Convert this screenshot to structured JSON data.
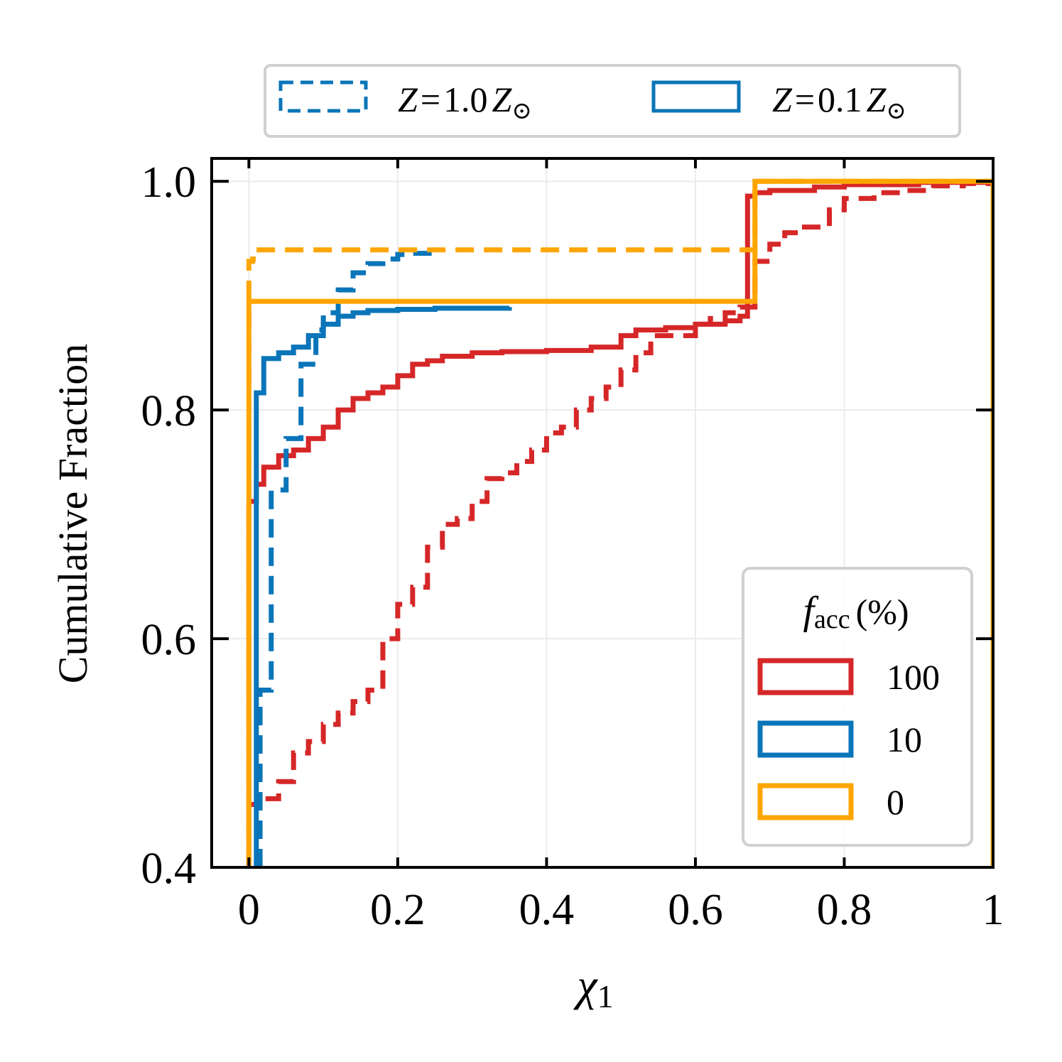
{
  "chart_data": {
    "type": "line",
    "subtype": "cumulative step histogram",
    "xlabel": "χ1",
    "xlabel_symbol": "χ",
    "xlabel_subscript": "1",
    "ylabel": "Cumulative Fraction",
    "xlim": [
      -0.05,
      1.0
    ],
    "ylim": [
      0.4,
      1.02
    ],
    "grid": true,
    "x_ticks": [
      0,
      0.2,
      0.4,
      0.6,
      0.8,
      1.0
    ],
    "x_tick_labels": [
      "0",
      "0.2",
      "0.4",
      "0.6",
      "0.8",
      "1"
    ],
    "y_ticks": [
      0.4,
      0.6,
      0.8,
      1.0
    ],
    "y_tick_labels": [
      "0.4",
      "0.6",
      "0.8",
      "1.0"
    ],
    "legend_metallicity": {
      "placement": "top, above axes",
      "entries": [
        {
          "style": "dashed",
          "label": "Z = 1.0 Z⊙",
          "var": "Z",
          "eq": "=",
          "val": "1.0",
          "unit": "Z",
          "unit_sub": "⊙"
        },
        {
          "style": "solid",
          "label": "Z = 0.1 Z⊙",
          "var": "Z",
          "eq": "=",
          "val": "0.1",
          "unit": "Z",
          "unit_sub": "⊙"
        }
      ]
    },
    "legend_facc": {
      "placement": "lower right",
      "title": "facc (%)",
      "title_var": "f",
      "title_sub": "acc",
      "title_unit": "(%)",
      "entries": [
        {
          "label": "100",
          "color": "#d62728"
        },
        {
          "label": "10",
          "color": "#0a75b9"
        },
        {
          "label": "0",
          "color": "#ffa500"
        }
      ]
    },
    "series": [
      {
        "name": "facc 100%, Z = 1.0 Z⊙",
        "color": "#d62728",
        "style": "dashed",
        "x": [
          0.0,
          0.02,
          0.04,
          0.06,
          0.08,
          0.1,
          0.12,
          0.14,
          0.16,
          0.18,
          0.2,
          0.22,
          0.24,
          0.26,
          0.28,
          0.3,
          0.32,
          0.34,
          0.36,
          0.38,
          0.4,
          0.42,
          0.44,
          0.46,
          0.48,
          0.5,
          0.52,
          0.54,
          0.6,
          0.62,
          0.64,
          0.66,
          0.68,
          0.7,
          0.72,
          0.74,
          0.78,
          0.8,
          0.84,
          0.88,
          0.92,
          0.96,
          1.0
        ],
        "y": [
          0.455,
          0.46,
          0.475,
          0.5,
          0.51,
          0.525,
          0.535,
          0.545,
          0.555,
          0.6,
          0.63,
          0.645,
          0.68,
          0.7,
          0.705,
          0.72,
          0.74,
          0.745,
          0.755,
          0.765,
          0.78,
          0.785,
          0.8,
          0.81,
          0.82,
          0.835,
          0.85,
          0.865,
          0.875,
          0.88,
          0.885,
          0.89,
          0.93,
          0.945,
          0.955,
          0.96,
          0.975,
          0.985,
          0.99,
          0.992,
          0.996,
          0.998,
          1.0
        ]
      },
      {
        "name": "facc 100%, Z = 0.1 Z⊙",
        "color": "#d62728",
        "style": "solid",
        "x": [
          0.0,
          0.01,
          0.02,
          0.04,
          0.06,
          0.08,
          0.1,
          0.12,
          0.14,
          0.16,
          0.18,
          0.2,
          0.22,
          0.24,
          0.26,
          0.3,
          0.34,
          0.4,
          0.46,
          0.5,
          0.52,
          0.56,
          0.6,
          0.64,
          0.66,
          0.67,
          0.68,
          0.7,
          0.76,
          0.8,
          0.9,
          1.0
        ],
        "y": [
          0.72,
          0.735,
          0.75,
          0.76,
          0.765,
          0.775,
          0.785,
          0.8,
          0.81,
          0.815,
          0.82,
          0.83,
          0.84,
          0.843,
          0.847,
          0.85,
          0.851,
          0.852,
          0.855,
          0.865,
          0.87,
          0.872,
          0.875,
          0.878,
          0.882,
          0.987,
          0.99,
          0.992,
          0.995,
          0.997,
          0.999,
          1.0
        ]
      },
      {
        "name": "facc 10%, Z = 1.0 Z⊙",
        "color": "#0a75b9",
        "style": "dashed",
        "x": [
          0.015,
          0.03,
          0.05,
          0.07,
          0.09,
          0.1,
          0.12,
          0.14,
          0.16,
          0.18,
          0.2,
          0.22,
          0.25
        ],
        "y": [
          0.555,
          0.73,
          0.775,
          0.84,
          0.87,
          0.885,
          0.905,
          0.92,
          0.928,
          0.932,
          0.936,
          0.937,
          0.938
        ]
      },
      {
        "name": "facc 10%, Z = 0.1 Z⊙",
        "color": "#0a75b9",
        "style": "solid",
        "x": [
          0.01,
          0.02,
          0.04,
          0.06,
          0.08,
          0.1,
          0.12,
          0.14,
          0.16,
          0.2,
          0.25,
          0.35
        ],
        "y": [
          0.815,
          0.845,
          0.85,
          0.855,
          0.865,
          0.875,
          0.882,
          0.885,
          0.887,
          0.888,
          0.889,
          0.89
        ]
      },
      {
        "name": "facc 0%, Z = 1.0 Z⊙",
        "color": "#ffa500",
        "style": "dashed",
        "x": [
          0.0,
          0.005,
          0.01,
          0.67,
          0.68,
          1.0
        ],
        "y": [
          0.93,
          0.932,
          0.94,
          0.94,
          1.0,
          1.0
        ]
      },
      {
        "name": "facc 0%, Z = 0.1 Z⊙",
        "color": "#ffa500",
        "style": "solid",
        "x": [
          0.0,
          0.01,
          0.67,
          0.68,
          1.0
        ],
        "y": [
          0.895,
          0.895,
          0.895,
          1.0,
          1.0
        ]
      }
    ]
  }
}
